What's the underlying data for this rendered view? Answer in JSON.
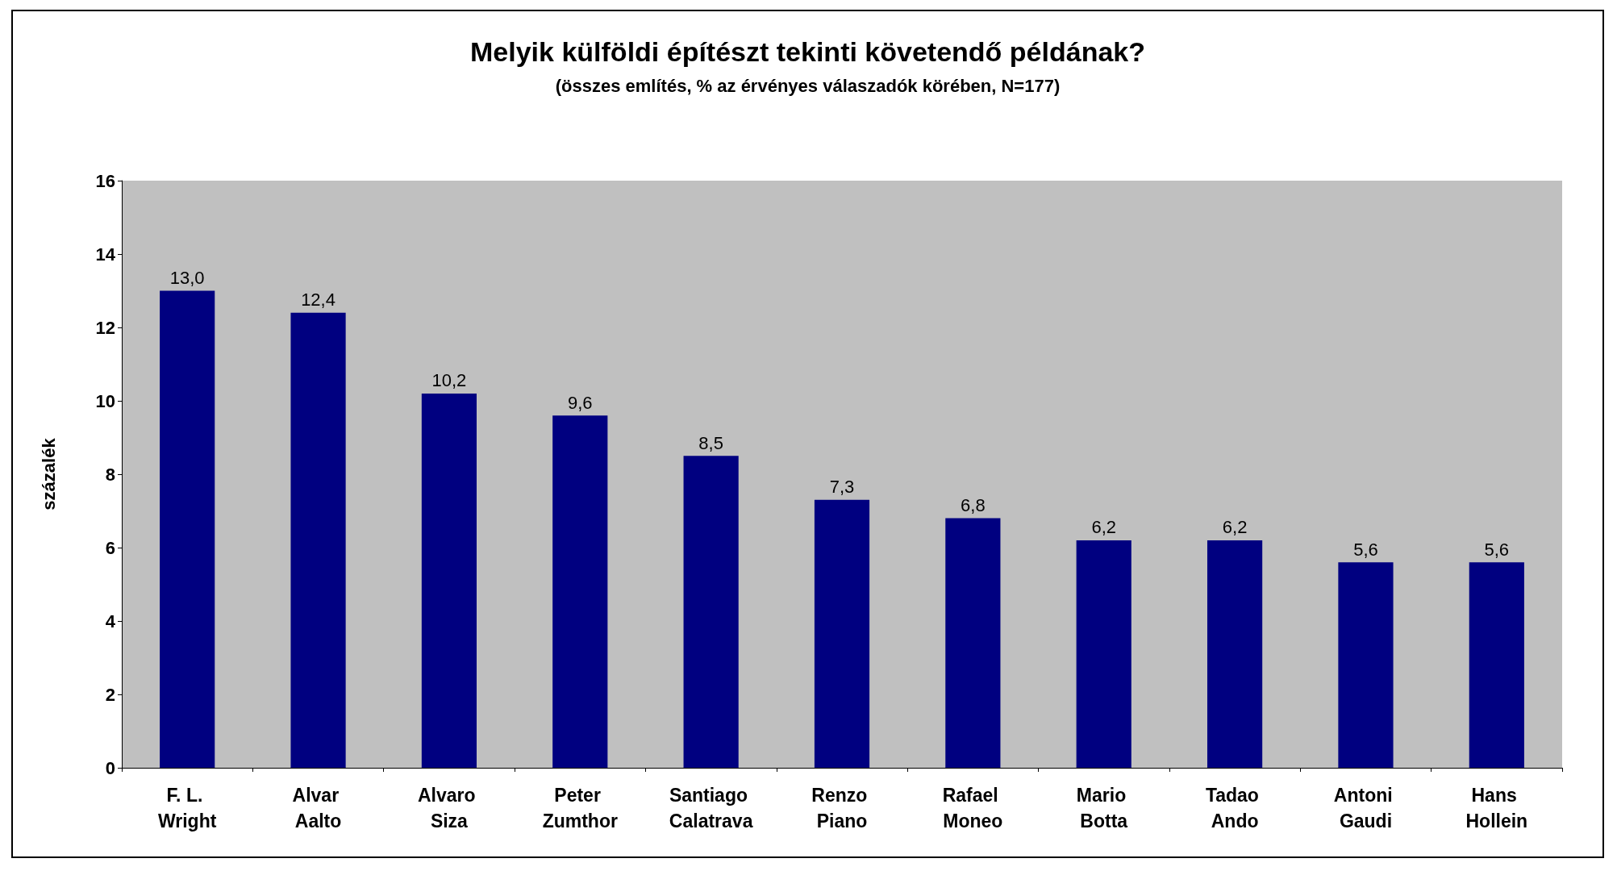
{
  "chart_data": {
    "type": "bar",
    "title": "Melyik külföldi építészt tekinti követendő példának?",
    "subtitle": "(összes említés, % az érvényes válaszadók körében, N=177)",
    "ylabel": "százalék",
    "categories": [
      "F. L. Wright",
      "Alvar Aalto",
      "Alvaro Siza",
      "Peter Zumthor",
      "Santiago Calatrava",
      "Renzo Piano",
      "Rafael Moneo",
      "Mario Botta",
      "Tadao Ando",
      "Antoni Gaudi",
      "Hans Hollein"
    ],
    "values": [
      13.0,
      12.4,
      10.2,
      9.6,
      8.5,
      7.3,
      6.8,
      6.2,
      6.2,
      5.6,
      5.6
    ],
    "value_labels": [
      "13,0",
      "12,4",
      "10,2",
      "9,6",
      "8,5",
      "7,3",
      "6,8",
      "6,2",
      "6,2",
      "5,6",
      "5,6"
    ],
    "color": "#000080",
    "ylim": [
      0,
      16
    ],
    "yticks": [
      0,
      2,
      4,
      6,
      8,
      10,
      12,
      14,
      16
    ],
    "grid": false
  }
}
